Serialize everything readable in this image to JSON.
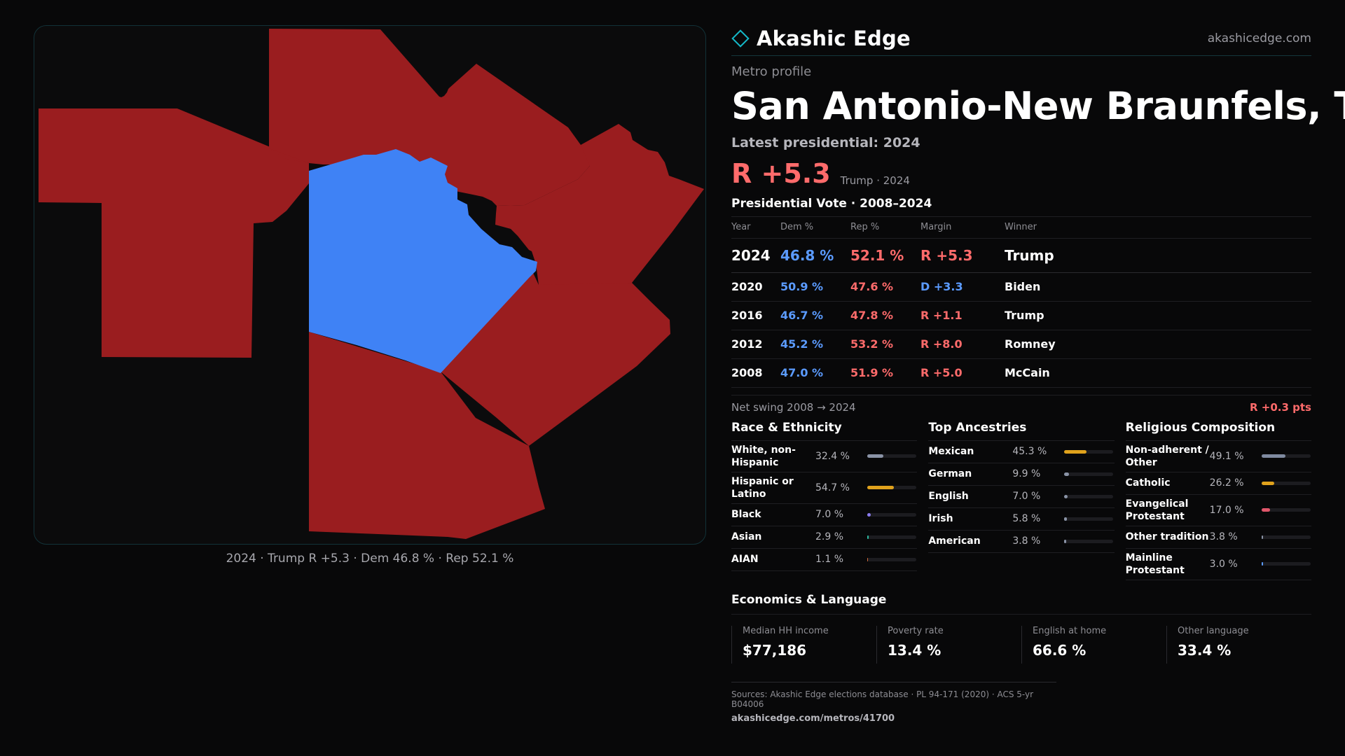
{
  "brand": {
    "name": "Akashic Edge",
    "site": "akashicedge.com"
  },
  "colors": {
    "dem": "#3f82f5",
    "rep": "#9a1d1f",
    "accent": "#14b8c8"
  },
  "profile": {
    "kicker": "Metro profile",
    "title": "San Antonio-New Braunfels, TX",
    "latest": "Latest presidential: 2024",
    "headline_margin": "R +5.3",
    "headline_sub": "Trump · 2024"
  },
  "map": {
    "caption": "2024 · Trump R +5.3 · Dem 46.8 % · Rep 52.1 %"
  },
  "votes": {
    "title": "Presidential Vote · 2008–2024",
    "headers": {
      "year": "Year",
      "dem": "Dem %",
      "rep": "Rep %",
      "margin": "Margin",
      "winner": "Winner"
    },
    "rows": [
      {
        "year": "2024",
        "dem": "46.8 %",
        "rep": "52.1 %",
        "margin": "R +5.3",
        "winner": "Trump"
      },
      {
        "year": "2020",
        "dem": "50.9 %",
        "rep": "47.6 %",
        "margin": "D +3.3",
        "winner": "Biden"
      },
      {
        "year": "2016",
        "dem": "46.7 %",
        "rep": "47.8 %",
        "margin": "R +1.1",
        "winner": "Trump"
      },
      {
        "year": "2012",
        "dem": "45.2 %",
        "rep": "53.2 %",
        "margin": "R +8.0",
        "winner": "Romney"
      },
      {
        "year": "2008",
        "dem": "47.0 %",
        "rep": "51.9 %",
        "margin": "R +5.0",
        "winner": "McCain"
      }
    ],
    "swing_label": "Net swing 2008 → 2024",
    "swing_value": "R +0.3 pts"
  },
  "race": {
    "title": "Race & Ethnicity",
    "items": [
      {
        "label": "White, non-Hispanic",
        "value": "32.4 %",
        "pct": 32.4,
        "color": "#8a93a6"
      },
      {
        "label": "Hispanic or Latino",
        "value": "54.7 %",
        "pct": 54.7,
        "color": "#e0a21c"
      },
      {
        "label": "Black",
        "value": "7.0 %",
        "pct": 7.0,
        "color": "#8b7cf0"
      },
      {
        "label": "Asian",
        "value": "2.9 %",
        "pct": 2.9,
        "color": "#2bb9a0"
      },
      {
        "label": "AIAN",
        "value": "1.1 %",
        "pct": 1.1,
        "color": "#d06a3a"
      }
    ]
  },
  "ancestry": {
    "title": "Top Ancestries",
    "items": [
      {
        "label": "Mexican",
        "value": "45.3 %",
        "pct": 45.3,
        "color": "#e0a21c"
      },
      {
        "label": "German",
        "value": "9.9 %",
        "pct": 9.9,
        "color": "#8a93a6"
      },
      {
        "label": "English",
        "value": "7.0 %",
        "pct": 7.0,
        "color": "#8a93a6"
      },
      {
        "label": "Irish",
        "value": "5.8 %",
        "pct": 5.8,
        "color": "#8a93a6"
      },
      {
        "label": "American",
        "value": "3.8 %",
        "pct": 3.8,
        "color": "#8a93a6"
      }
    ]
  },
  "religion": {
    "title": "Religious Composition",
    "items": [
      {
        "label": "Non-adherent / Other",
        "value": "49.1 %",
        "pct": 49.1,
        "color": "#7f8aa0"
      },
      {
        "label": "Catholic",
        "value": "26.2 %",
        "pct": 26.2,
        "color": "#e0a21c"
      },
      {
        "label": "Evangelical Protestant",
        "value": "17.0 %",
        "pct": 17.0,
        "color": "#e0566a"
      },
      {
        "label": "Other tradition",
        "value": "3.8 %",
        "pct": 3.8,
        "color": "#8a93a6"
      },
      {
        "label": "Mainline Protestant",
        "value": "3.0 %",
        "pct": 3.0,
        "color": "#5b9bff"
      }
    ]
  },
  "economics": {
    "title": "Economics & Language",
    "items": [
      {
        "label": "Median HH income",
        "value": "$77,186"
      },
      {
        "label": "Poverty rate",
        "value": "13.4 %"
      },
      {
        "label": "English at home",
        "value": "66.6 %"
      },
      {
        "label": "Other language",
        "value": "33.4 %"
      }
    ]
  },
  "sources": {
    "text": "Sources: Akashic Edge elections database · PL 94-171 (2020) · ACS 5-yr B04006",
    "url": "akashicedge.com/metros/41700"
  }
}
